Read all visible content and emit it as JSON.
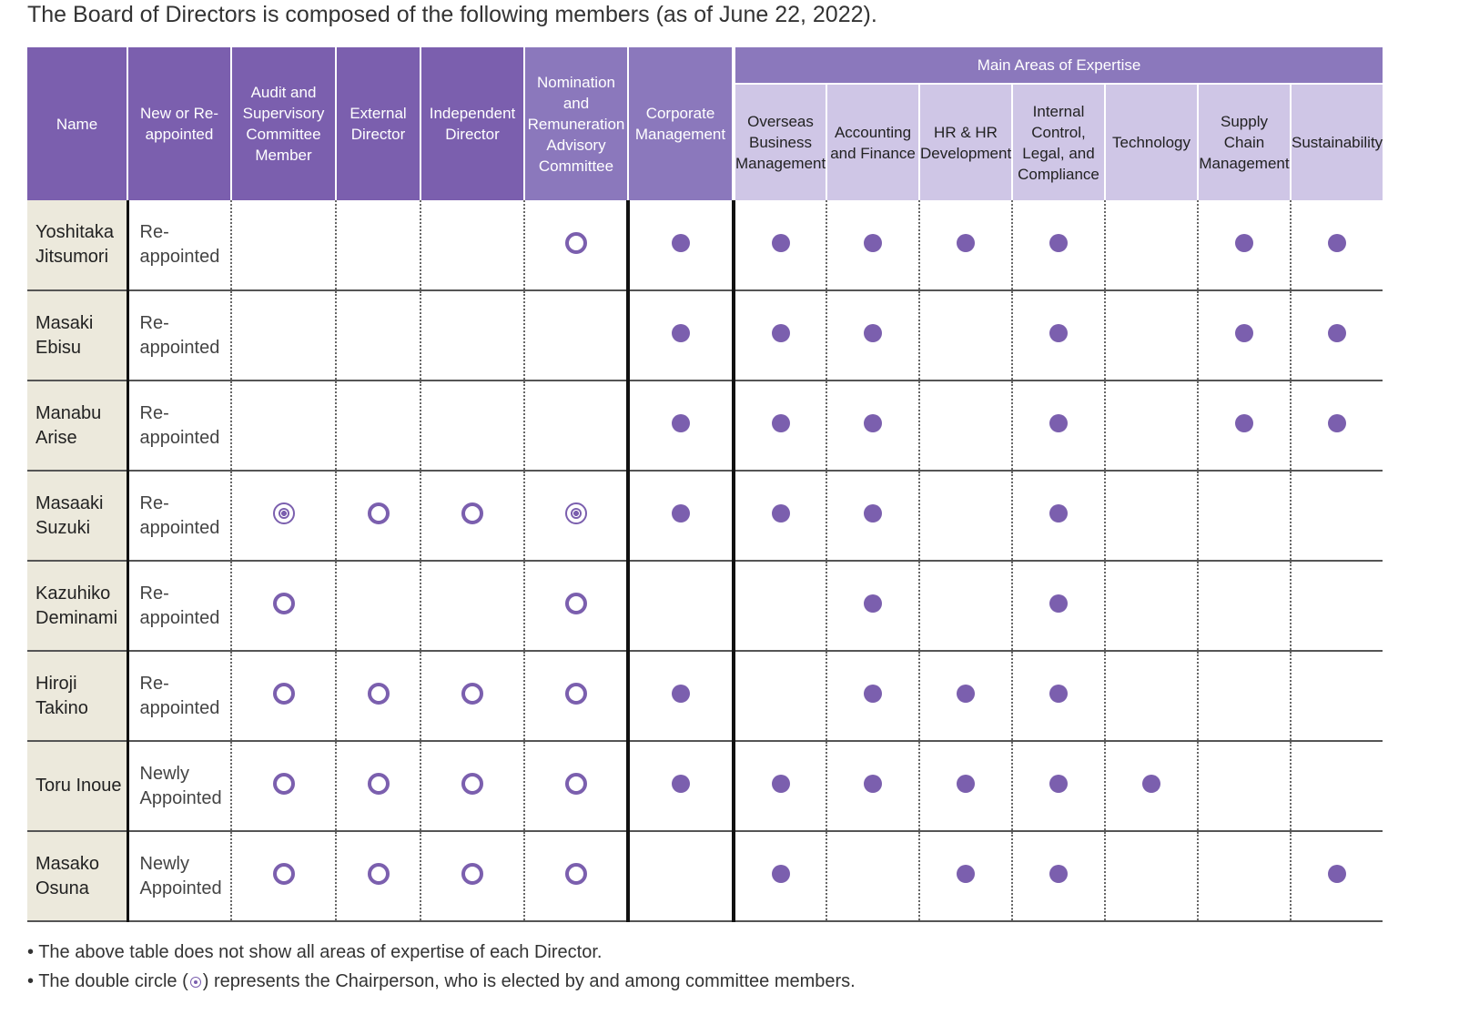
{
  "intro": "The Board of Directors is composed of the following members (as of June 22, 2022).",
  "colors": {
    "dark_header": "#7b5fae",
    "mid_header": "#8b78bc",
    "sub_header": "#cfc6e6",
    "name_cell": "#ece9dc",
    "mark": "#7b5fae"
  },
  "header": {
    "name": "Name",
    "status": "New or Re-appointed",
    "audit": "Audit and Supervisory Committee Member",
    "external": "External Director",
    "independent": "Independent Director",
    "nomination": "Nomination and Remuneration Advisory Committee",
    "corporate": "Corporate Management",
    "group": "Main Areas of Expertise",
    "overseas": "Overseas Business Management",
    "accounting": "Accounting and Finance",
    "hr": "HR & HR Development",
    "internal": "Internal Control, Legal, and Compliance",
    "technology": "Technology",
    "supply": "Supply Chain Management",
    "sustainability": "Sustainability"
  },
  "legend": {
    "dot": "filled-dot",
    "ring": "circle (member)",
    "double": "double circle (chairperson)"
  },
  "rows": [
    {
      "name": "Yoshitaka Jitsumori",
      "status": "Re-appointed",
      "marks": [
        "",
        "",
        "",
        "ring",
        "dot",
        "dot",
        "dot",
        "dot",
        "dot",
        "",
        "dot",
        "dot"
      ]
    },
    {
      "name": "Masaki Ebisu",
      "status": "Re-appointed",
      "marks": [
        "",
        "",
        "",
        "",
        "dot",
        "dot",
        "dot",
        "",
        "dot",
        "",
        "dot",
        "dot"
      ]
    },
    {
      "name": "Manabu Arise",
      "status": "Re-appointed",
      "marks": [
        "",
        "",
        "",
        "",
        "dot",
        "dot",
        "dot",
        "",
        "dot",
        "",
        "dot",
        "dot"
      ]
    },
    {
      "name": "Masaaki Suzuki",
      "status": "Re-appointed",
      "marks": [
        "double",
        "ring",
        "ring",
        "double",
        "dot",
        "dot",
        "dot",
        "",
        "dot",
        "",
        "",
        ""
      ]
    },
    {
      "name": "Kazuhiko Deminami",
      "status": "Re-appointed",
      "marks": [
        "ring",
        "",
        "",
        "ring",
        "",
        "",
        "dot",
        "",
        "dot",
        "",
        "",
        ""
      ]
    },
    {
      "name": "Hiroji Takino",
      "status": "Re-appointed",
      "marks": [
        "ring",
        "ring",
        "ring",
        "ring",
        "dot",
        "",
        "dot",
        "dot",
        "dot",
        "",
        "",
        ""
      ]
    },
    {
      "name": "Toru Inoue",
      "status": "Newly Appointed",
      "marks": [
        "ring",
        "ring",
        "ring",
        "ring",
        "dot",
        "dot",
        "dot",
        "dot",
        "dot",
        "dot",
        "",
        ""
      ]
    },
    {
      "name": "Masako Osuna",
      "status": "Newly Appointed",
      "marks": [
        "ring",
        "ring",
        "ring",
        "ring",
        "",
        "dot",
        "",
        "dot",
        "dot",
        "",
        "",
        "dot"
      ]
    }
  ],
  "notes": {
    "note1": "The above table does not show all areas of expertise of each Director.",
    "note2_pre": "The double circle (",
    "note2_post": ") represents the Chairperson, who is elected by and among committee members."
  }
}
